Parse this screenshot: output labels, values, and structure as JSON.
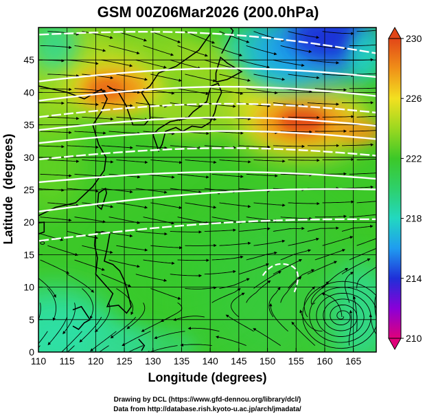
{
  "chart_data": {
    "type": "heatmap",
    "title": "GSM 00Z06Mar2026 (200.0hPa)",
    "xlabel": "Longitude (degrees)",
    "ylabel": "Latitude  (degrees)",
    "xlim": [
      110,
      169
    ],
    "ylim": [
      0,
      50
    ],
    "x_ticks": [
      110,
      115,
      120,
      125,
      130,
      135,
      140,
      145,
      150,
      155,
      160,
      165
    ],
    "y_ticks": [
      0,
      5,
      10,
      15,
      20,
      25,
      30,
      35,
      40,
      45
    ],
    "colorbar": {
      "range": [
        210,
        230
      ],
      "ticks": [
        230,
        226,
        222,
        218,
        214,
        210
      ],
      "colors": [
        "#e0007a",
        "#8a00d8",
        "#1f2fd8",
        "#1f9cf0",
        "#22d8c0",
        "#2ed06a",
        "#3cc828",
        "#9cd820",
        "#f2e020",
        "#f09018",
        "#e24618"
      ]
    },
    "field": "temperature (K) with wind streamlines and white jet contours",
    "jet_contour_latitudes": [
      17,
      21.5,
      26,
      29.5,
      32,
      34,
      36,
      38.5,
      41.5,
      47.5
    ],
    "warm_maxima": [
      {
        "lon": 123,
        "lat": 40.5,
        "value": 227
      },
      {
        "lon": 156,
        "lat": 35.5,
        "value": 228
      }
    ],
    "cold_minimum": {
      "lon": 161,
      "lat": 48.5,
      "value": 213
    },
    "credits": [
      "Drawing by DCL (https://www.gfd-dennou.org/library/dcl/)",
      "Data from http://database.rish.kyoto-u.ac.jp/arch/jmadata/"
    ]
  },
  "colors": {
    "background": "#ffffff",
    "contour": "#ffffff",
    "streamline": "#000000",
    "coastline": "#000000"
  }
}
